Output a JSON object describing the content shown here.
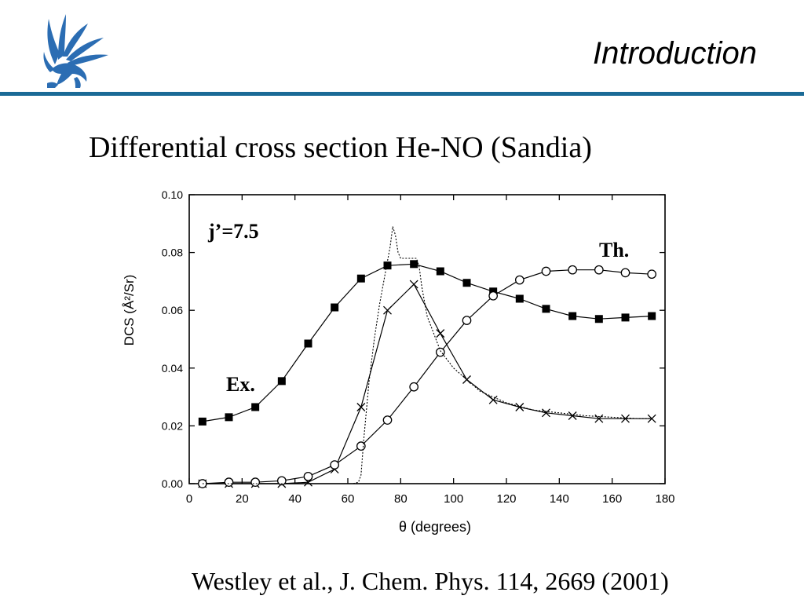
{
  "header": {
    "title": "Introduction",
    "accent_color": "#1a6a96"
  },
  "slide": {
    "title": "Differential cross section He-NO (Sandia)",
    "citation": "Westley et al., J. Chem. Phys. 114, 2669 (2001)"
  },
  "logo": {
    "icon": "griffin-logo-icon",
    "color": "#2b6db3"
  },
  "chart_data": {
    "type": "line",
    "xlabel": "θ (degrees)",
    "ylabel": "DCS (Å²/Sr)",
    "xlim": [
      0,
      180
    ],
    "ylim": [
      0,
      0.1
    ],
    "xticks": [
      "0",
      "20",
      "40",
      "60",
      "80",
      "100",
      "120",
      "140",
      "160",
      "180"
    ],
    "yticks": [
      "0.00",
      "0.02",
      "0.04",
      "0.06",
      "0.08",
      "0.10"
    ],
    "grid": false,
    "annotations": [
      {
        "text": "j’=7.5"
      },
      {
        "text": "Th."
      },
      {
        "text": "Ex."
      }
    ],
    "series": [
      {
        "marker": "filled-square",
        "x": [
          5,
          15,
          25,
          35,
          45,
          55,
          65,
          75,
          85,
          95,
          105,
          115,
          125,
          135,
          145,
          155,
          165,
          175
        ],
        "values": [
          0.0215,
          0.023,
          0.0265,
          0.0355,
          0.0485,
          0.061,
          0.071,
          0.0755,
          0.076,
          0.0735,
          0.0695,
          0.0665,
          0.064,
          0.0605,
          0.058,
          0.057,
          0.0575,
          0.058
        ]
      },
      {
        "marker": "cross",
        "x": [
          5,
          15,
          25,
          35,
          45,
          55,
          65,
          75,
          85,
          95,
          105,
          115,
          125,
          135,
          145,
          155,
          165,
          175
        ],
        "values": [
          0.0,
          0.0,
          0.0,
          0.0,
          0.0005,
          0.005,
          0.0265,
          0.06,
          0.069,
          0.052,
          0.036,
          0.029,
          0.0265,
          0.0245,
          0.0235,
          0.0225,
          0.0225,
          0.0225
        ]
      },
      {
        "marker": "open-circle",
        "x": [
          5,
          15,
          25,
          35,
          45,
          55,
          65,
          75,
          85,
          95,
          105,
          115,
          125,
          135,
          145,
          155,
          165,
          175
        ],
        "values": [
          0.0,
          0.0005,
          0.0005,
          0.001,
          0.0025,
          0.0065,
          0.013,
          0.022,
          0.0335,
          0.0455,
          0.0565,
          0.065,
          0.0705,
          0.0735,
          0.074,
          0.074,
          0.073,
          0.0725
        ]
      },
      {
        "marker": "none",
        "line": "dotted",
        "x": [
          5,
          30,
          55,
          62,
          64,
          65,
          66,
          68,
          70,
          72,
          74,
          76,
          77,
          78,
          79,
          80,
          82,
          84,
          86,
          87,
          88,
          90,
          95,
          100,
          105,
          110,
          120,
          130,
          140,
          150,
          160,
          170,
          175
        ],
        "values": [
          0.0,
          0.0,
          0.0,
          0.0,
          0.0005,
          0.003,
          0.015,
          0.035,
          0.05,
          0.062,
          0.072,
          0.082,
          0.089,
          0.086,
          0.08,
          0.078,
          0.078,
          0.078,
          0.078,
          0.075,
          0.068,
          0.058,
          0.046,
          0.04,
          0.036,
          0.032,
          0.028,
          0.0255,
          0.0245,
          0.0235,
          0.023,
          0.0225,
          0.0225
        ]
      }
    ]
  }
}
